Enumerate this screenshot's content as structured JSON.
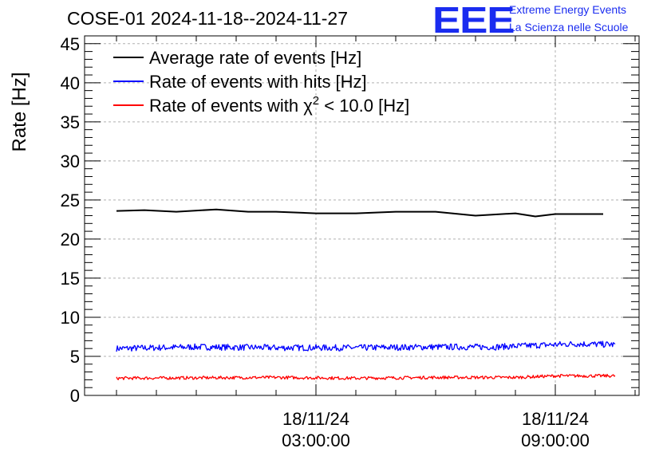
{
  "header": {
    "title": "COSE-01 2024-11-18--2024-11-27",
    "logo_text": "EEE",
    "logo_line1": "Extreme Energy Events",
    "logo_line2": "La Scienza nelle Scuole"
  },
  "colors": {
    "average": "#000000",
    "hits": "#0000ff",
    "chi2": "#ff0000",
    "logo": "#1a2cf0",
    "grid": "#b0b0b0"
  },
  "chart_data": {
    "type": "line",
    "title": "COSE-01 2024-11-18--2024-11-27",
    "ylabel": "Rate [Hz]",
    "xlabel": "",
    "ylim": [
      0,
      46
    ],
    "xlim_hours": [
      -2.8,
      11.1
    ],
    "yticks": [
      0,
      5,
      10,
      15,
      20,
      25,
      30,
      35,
      40,
      45
    ],
    "xticks": [
      {
        "hour": 3,
        "date": "18/11/24",
        "time": "03:00:00"
      },
      {
        "hour": 9,
        "date": "18/11/24",
        "time": "09:00:00"
      }
    ],
    "grid": true,
    "legend_position": "top-left",
    "legend": [
      {
        "key": "average",
        "label": "Average rate of events [Hz]"
      },
      {
        "key": "hits",
        "label": "Rate of events with hits [Hz]"
      },
      {
        "key": "chi2",
        "label_pre": "Rate of events with ",
        "label_sym": "χ",
        "label_sup": "2",
        "label_post": " < 10.0 [Hz]"
      }
    ],
    "series": [
      {
        "name": "Average rate of events [Hz]",
        "key": "average",
        "noisy": false,
        "x": [
          -2.0,
          -1.3,
          -0.5,
          0.5,
          1.3,
          2.0,
          3.0,
          4.0,
          5.0,
          6.0,
          7.0,
          8.0,
          8.5,
          9.0,
          10.2
        ],
        "y": [
          23.6,
          23.7,
          23.5,
          23.8,
          23.5,
          23.5,
          23.3,
          23.3,
          23.5,
          23.5,
          23.0,
          23.3,
          22.9,
          23.2,
          23.2
        ]
      },
      {
        "name": "Rate of events with hits [Hz]",
        "key": "hits",
        "noisy": true,
        "amplitude": 0.4,
        "x": [
          -2.0,
          0.0,
          2.0,
          4.0,
          6.0,
          7.5,
          8.5,
          9.5,
          10.5
        ],
        "y": [
          6.0,
          6.2,
          6.1,
          6.1,
          6.2,
          6.2,
          6.4,
          6.6,
          6.5
        ]
      },
      {
        "name": "Rate of events with χ2 < 10.0 [Hz]",
        "key": "chi2",
        "noisy": true,
        "amplitude": 0.2,
        "x": [
          -2.0,
          2.0,
          4.0,
          6.0,
          8.0,
          9.0,
          10.5
        ],
        "y": [
          2.2,
          2.3,
          2.2,
          2.3,
          2.3,
          2.5,
          2.5
        ]
      }
    ]
  }
}
